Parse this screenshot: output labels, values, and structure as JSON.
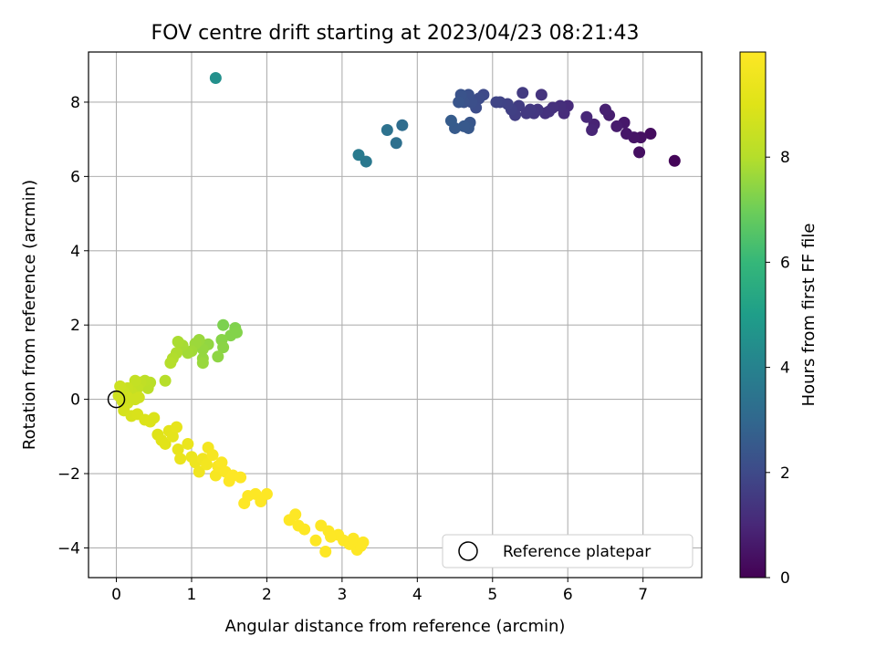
{
  "chart_data": {
    "type": "scatter",
    "title": "FOV centre drift starting at 2023/04/23 08:21:43",
    "xlabel": "Angular distance from reference (arcmin)",
    "ylabel": "Rotation from reference (arcmin)",
    "xlim": [
      -0.37,
      7.78
    ],
    "ylim": [
      -4.8,
      9.35
    ],
    "xticks": [
      0,
      1,
      2,
      3,
      4,
      5,
      6,
      7
    ],
    "yticks": [
      -4,
      -2,
      0,
      2,
      4,
      6,
      8
    ],
    "grid": true,
    "legend": {
      "position": "lower right",
      "entries": [
        "Reference platepar"
      ]
    },
    "reference_point": {
      "x": 0,
      "y": 0
    },
    "colorbar": {
      "label": "Hours from first FF file",
      "range": [
        0,
        10
      ],
      "ticks": [
        0,
        2,
        4,
        6,
        8
      ],
      "colormap": "viridis"
    },
    "points": [
      {
        "x": 7.42,
        "y": 6.42,
        "h": 0.1
      },
      {
        "x": 7.1,
        "y": 7.15,
        "h": 0.3
      },
      {
        "x": 6.95,
        "y": 6.65,
        "h": 0.35
      },
      {
        "x": 6.97,
        "y": 7.05,
        "h": 0.4
      },
      {
        "x": 6.88,
        "y": 7.05,
        "h": 0.5
      },
      {
        "x": 6.78,
        "y": 7.15,
        "h": 0.55
      },
      {
        "x": 6.75,
        "y": 7.45,
        "h": 0.6
      },
      {
        "x": 6.65,
        "y": 7.35,
        "h": 0.7
      },
      {
        "x": 6.55,
        "y": 7.65,
        "h": 0.75
      },
      {
        "x": 6.5,
        "y": 7.8,
        "h": 0.8
      },
      {
        "x": 6.35,
        "y": 7.4,
        "h": 0.9
      },
      {
        "x": 6.32,
        "y": 7.25,
        "h": 0.95
      },
      {
        "x": 6.25,
        "y": 7.6,
        "h": 1.0
      },
      {
        "x": 6.0,
        "y": 7.9,
        "h": 1.1
      },
      {
        "x": 5.95,
        "y": 7.7,
        "h": 1.15
      },
      {
        "x": 5.9,
        "y": 7.9,
        "h": 1.2
      },
      {
        "x": 5.8,
        "y": 7.85,
        "h": 1.25
      },
      {
        "x": 5.7,
        "y": 7.7,
        "h": 1.3
      },
      {
        "x": 5.65,
        "y": 8.2,
        "h": 1.35
      },
      {
        "x": 5.6,
        "y": 7.8,
        "h": 1.4
      },
      {
        "x": 5.55,
        "y": 7.7,
        "h": 1.45
      },
      {
        "x": 5.5,
        "y": 7.8,
        "h": 1.5
      },
      {
        "x": 5.4,
        "y": 8.25,
        "h": 1.55
      },
      {
        "x": 5.35,
        "y": 7.9,
        "h": 1.6
      },
      {
        "x": 5.3,
        "y": 7.65,
        "h": 1.65
      },
      {
        "x": 5.25,
        "y": 7.8,
        "h": 1.7
      },
      {
        "x": 5.2,
        "y": 7.95,
        "h": 1.75
      },
      {
        "x": 5.1,
        "y": 8.0,
        "h": 1.8
      },
      {
        "x": 5.05,
        "y": 8.0,
        "h": 1.85
      },
      {
        "x": 5.45,
        "y": 7.7,
        "h": 1.5
      },
      {
        "x": 5.75,
        "y": 7.75,
        "h": 1.3
      },
      {
        "x": 4.88,
        "y": 8.2,
        "h": 2.0
      },
      {
        "x": 4.82,
        "y": 8.1,
        "h": 2.05
      },
      {
        "x": 4.78,
        "y": 7.85,
        "h": 2.1
      },
      {
        "x": 4.72,
        "y": 8.0,
        "h": 2.15
      },
      {
        "x": 4.68,
        "y": 8.2,
        "h": 2.2
      },
      {
        "x": 4.62,
        "y": 8.0,
        "h": 2.25
      },
      {
        "x": 4.58,
        "y": 8.2,
        "h": 2.3
      },
      {
        "x": 4.55,
        "y": 8.0,
        "h": 2.35
      },
      {
        "x": 4.7,
        "y": 7.45,
        "h": 2.4
      },
      {
        "x": 4.68,
        "y": 7.3,
        "h": 2.45
      },
      {
        "x": 4.62,
        "y": 7.35,
        "h": 2.5
      },
      {
        "x": 4.5,
        "y": 7.3,
        "h": 2.55
      },
      {
        "x": 4.45,
        "y": 7.5,
        "h": 2.6
      },
      {
        "x": 3.8,
        "y": 7.38,
        "h": 3.2
      },
      {
        "x": 3.72,
        "y": 6.9,
        "h": 3.3
      },
      {
        "x": 3.6,
        "y": 7.25,
        "h": 3.4
      },
      {
        "x": 3.32,
        "y": 6.4,
        "h": 3.6
      },
      {
        "x": 3.22,
        "y": 6.58,
        "h": 3.7
      },
      {
        "x": 1.32,
        "y": 8.65,
        "h": 4.5
      },
      {
        "x": 1.42,
        "y": 2.0,
        "h": 7.2
      },
      {
        "x": 1.58,
        "y": 1.92,
        "h": 7.25
      },
      {
        "x": 1.52,
        "y": 1.72,
        "h": 7.3
      },
      {
        "x": 1.4,
        "y": 1.6,
        "h": 7.35
      },
      {
        "x": 1.42,
        "y": 1.4,
        "h": 7.4
      },
      {
        "x": 1.35,
        "y": 1.15,
        "h": 7.45
      },
      {
        "x": 1.22,
        "y": 1.48,
        "h": 7.5
      },
      {
        "x": 1.15,
        "y": 1.35,
        "h": 7.55
      },
      {
        "x": 1.1,
        "y": 1.6,
        "h": 7.6
      },
      {
        "x": 1.05,
        "y": 1.5,
        "h": 7.65
      },
      {
        "x": 1.0,
        "y": 1.3,
        "h": 7.7
      },
      {
        "x": 0.95,
        "y": 1.25,
        "h": 7.75
      },
      {
        "x": 0.88,
        "y": 1.45,
        "h": 7.8
      },
      {
        "x": 0.82,
        "y": 1.55,
        "h": 7.85
      },
      {
        "x": 0.8,
        "y": 1.25,
        "h": 7.9
      },
      {
        "x": 0.75,
        "y": 1.1,
        "h": 7.95
      },
      {
        "x": 0.72,
        "y": 0.98,
        "h": 8.0
      },
      {
        "x": 1.15,
        "y": 1.1,
        "h": 7.55
      },
      {
        "x": 1.15,
        "y": 0.98,
        "h": 7.6
      },
      {
        "x": 0.65,
        "y": 0.5,
        "h": 8.05
      },
      {
        "x": 0.45,
        "y": 0.45,
        "h": 8.1
      },
      {
        "x": 0.42,
        "y": 0.3,
        "h": 8.15
      },
      {
        "x": 0.38,
        "y": 0.5,
        "h": 8.2
      },
      {
        "x": 0.32,
        "y": 0.45,
        "h": 8.25
      },
      {
        "x": 0.28,
        "y": 0.3,
        "h": 8.3
      },
      {
        "x": 0.25,
        "y": 0.5,
        "h": 8.35
      },
      {
        "x": 0.2,
        "y": 0.2,
        "h": 8.4
      },
      {
        "x": 0.15,
        "y": 0.3,
        "h": 8.45
      },
      {
        "x": 0.1,
        "y": 0.2,
        "h": 8.5
      },
      {
        "x": 0.05,
        "y": 0.35,
        "h": 8.55
      },
      {
        "x": 0.03,
        "y": 0.1,
        "h": 8.6
      },
      {
        "x": 0.08,
        "y": -0.05,
        "h": 8.65
      },
      {
        "x": 0.15,
        "y": -0.1,
        "h": 8.7
      },
      {
        "x": 0.3,
        "y": 0.05,
        "h": 8.6
      },
      {
        "x": 0.1,
        "y": -0.3,
        "h": 8.75
      },
      {
        "x": 0.2,
        "y": -0.45,
        "h": 8.8
      },
      {
        "x": 0.28,
        "y": -0.4,
        "h": 8.85
      },
      {
        "x": 0.38,
        "y": -0.55,
        "h": 8.9
      },
      {
        "x": 0.45,
        "y": -0.6,
        "h": 8.95
      },
      {
        "x": 0.55,
        "y": -0.95,
        "h": 9.0
      },
      {
        "x": 0.6,
        "y": -1.1,
        "h": 9.05
      },
      {
        "x": 0.65,
        "y": -1.2,
        "h": 9.1
      },
      {
        "x": 0.7,
        "y": -0.85,
        "h": 9.15
      },
      {
        "x": 0.75,
        "y": -1.0,
        "h": 9.2
      },
      {
        "x": 0.8,
        "y": -0.75,
        "h": 9.25
      },
      {
        "x": 0.82,
        "y": -1.35,
        "h": 9.3
      },
      {
        "x": 0.85,
        "y": -1.6,
        "h": 9.35
      },
      {
        "x": 0.95,
        "y": -1.2,
        "h": 9.4
      },
      {
        "x": 1.0,
        "y": -1.55,
        "h": 9.45
      },
      {
        "x": 1.05,
        "y": -1.7,
        "h": 9.5
      },
      {
        "x": 1.1,
        "y": -1.95,
        "h": 9.55
      },
      {
        "x": 1.15,
        "y": -1.6,
        "h": 9.6
      },
      {
        "x": 1.2,
        "y": -1.75,
        "h": 9.65
      },
      {
        "x": 1.22,
        "y": -1.3,
        "h": 9.7
      },
      {
        "x": 1.28,
        "y": -1.5,
        "h": 9.75
      },
      {
        "x": 1.32,
        "y": -2.05,
        "h": 9.8
      },
      {
        "x": 1.35,
        "y": -1.8,
        "h": 9.85
      },
      {
        "x": 1.4,
        "y": -1.7,
        "h": 9.9
      },
      {
        "x": 1.45,
        "y": -1.95,
        "h": 9.95
      },
      {
        "x": 1.5,
        "y": -2.2,
        "h": 10.0
      },
      {
        "x": 1.55,
        "y": -2.05,
        "h": 10.0
      },
      {
        "x": 1.65,
        "y": -2.1,
        "h": 10.0
      },
      {
        "x": 1.7,
        "y": -2.8,
        "h": 10.0
      },
      {
        "x": 1.75,
        "y": -2.6,
        "h": 10.0
      },
      {
        "x": 1.85,
        "y": -2.55,
        "h": 10.0
      },
      {
        "x": 1.92,
        "y": -2.75,
        "h": 10.0
      },
      {
        "x": 2.0,
        "y": -2.55,
        "h": 10.0
      },
      {
        "x": 2.3,
        "y": -3.25,
        "h": 10.0
      },
      {
        "x": 2.38,
        "y": -3.1,
        "h": 10.0
      },
      {
        "x": 2.42,
        "y": -3.4,
        "h": 10.0
      },
      {
        "x": 2.5,
        "y": -3.5,
        "h": 10.0
      },
      {
        "x": 2.65,
        "y": -3.8,
        "h": 10.0
      },
      {
        "x": 2.72,
        "y": -3.4,
        "h": 10.0
      },
      {
        "x": 2.78,
        "y": -4.1,
        "h": 10.0
      },
      {
        "x": 2.82,
        "y": -3.55,
        "h": 10.0
      },
      {
        "x": 2.95,
        "y": -3.65,
        "h": 10.0
      },
      {
        "x": 3.02,
        "y": -3.8,
        "h": 10.0
      },
      {
        "x": 3.1,
        "y": -3.9,
        "h": 10.0
      },
      {
        "x": 3.15,
        "y": -3.75,
        "h": 10.0
      },
      {
        "x": 3.2,
        "y": -4.05,
        "h": 10.0
      },
      {
        "x": 3.25,
        "y": -3.95,
        "h": 10.0
      },
      {
        "x": 3.28,
        "y": -3.85,
        "h": 10.0
      },
      {
        "x": 2.85,
        "y": -3.7,
        "h": 10.0
      },
      {
        "x": 0.5,
        "y": -0.5,
        "h": 8.9
      },
      {
        "x": 1.6,
        "y": 1.8,
        "h": 7.3
      },
      {
        "x": 0.15,
        "y": 0.05,
        "h": 8.65
      },
      {
        "x": 0.25,
        "y": 0.0,
        "h": 8.6
      }
    ]
  }
}
